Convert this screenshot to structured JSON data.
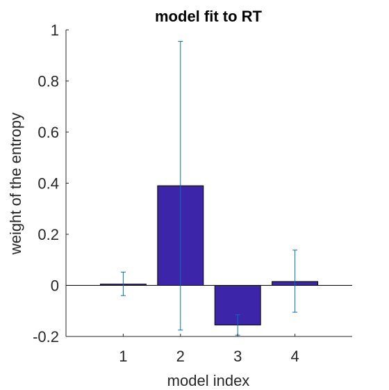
{
  "chart_data": {
    "type": "bar",
    "title": "model fit to RT",
    "xlabel": "model index",
    "ylabel": "weight of the entropy",
    "categories": [
      "1",
      "2",
      "3",
      "4"
    ],
    "values": [
      0.005,
      0.39,
      -0.155,
      0.015
    ],
    "errors": [
      {
        "low": -0.04,
        "high": 0.052
      },
      {
        "low": -0.175,
        "high": 0.955
      },
      {
        "low": -0.195,
        "high": -0.115
      },
      {
        "low": -0.105,
        "high": 0.138
      }
    ],
    "ylim": [
      -0.2,
      1
    ],
    "yticks": [
      -0.2,
      0,
      0.2,
      0.4,
      0.6,
      0.8,
      1
    ],
    "ytick_labels": [
      "-0.2",
      "0",
      "0.2",
      "0.4",
      "0.6",
      "0.8",
      "1"
    ],
    "xlim": [
      0,
      5
    ],
    "grid": false,
    "bar_color": "#3c25a8",
    "errorbar_color": "#0072bd",
    "zero_line": true
  }
}
